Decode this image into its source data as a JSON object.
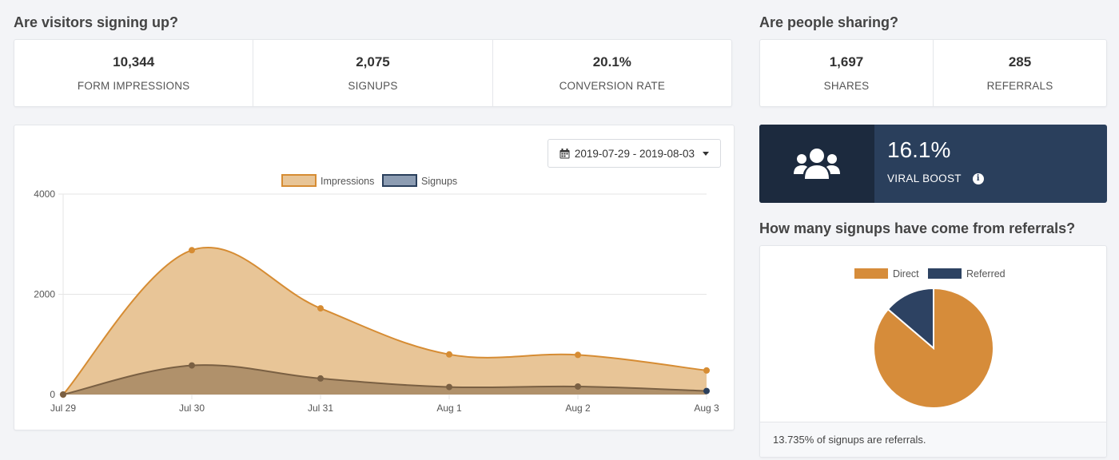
{
  "signup_section": {
    "title": "Are visitors signing up?",
    "stats": [
      {
        "value": "10,344",
        "label": "FORM IMPRESSIONS"
      },
      {
        "value": "2,075",
        "label": "SIGNUPS"
      },
      {
        "value": "20.1%",
        "label": "CONVERSION RATE"
      }
    ]
  },
  "sharing_section": {
    "title": "Are people sharing?",
    "stats": [
      {
        "value": "1,697",
        "label": "SHARES"
      },
      {
        "value": "285",
        "label": "REFERRALS"
      }
    ]
  },
  "date_range": {
    "label": "2019-07-29 - 2019-08-03",
    "icon": "calendar-icon"
  },
  "viral_boost": {
    "value": "16.1%",
    "label": "VIRAL BOOST",
    "icon": "users-icon",
    "info_icon": "info-icon"
  },
  "referrals_section": {
    "title": "How many signups have come from referrals?",
    "footer": "13.735% of signups are referrals."
  },
  "colors": {
    "impressions_fill": "#e8c597",
    "impressions_line": "#d68c33",
    "signups_fill": "#b0916b",
    "signups_line": "#7a6043",
    "navy": "#2a3f5c",
    "navy_dark": "#1c2a3e",
    "pie_direct": "#d68c3a",
    "pie_referred": "#2d4262"
  },
  "chart_data": [
    {
      "type": "area",
      "categories": [
        "Jul 29",
        "Jul 30",
        "Jul 31",
        "Aug 1",
        "Aug 2",
        "Aug 3"
      ],
      "series": [
        {
          "name": "Impressions",
          "values": [
            0,
            2880,
            1720,
            800,
            790,
            480
          ]
        },
        {
          "name": "Signups",
          "values": [
            0,
            580,
            320,
            150,
            160,
            70
          ]
        }
      ],
      "ylim": [
        0,
        4000
      ],
      "yticks": [
        0,
        2000,
        4000
      ],
      "legend": "top",
      "grid": true
    },
    {
      "type": "pie",
      "labels": [
        "Direct",
        "Referred"
      ],
      "values": [
        86.265,
        13.735
      ],
      "legend": "top"
    }
  ]
}
